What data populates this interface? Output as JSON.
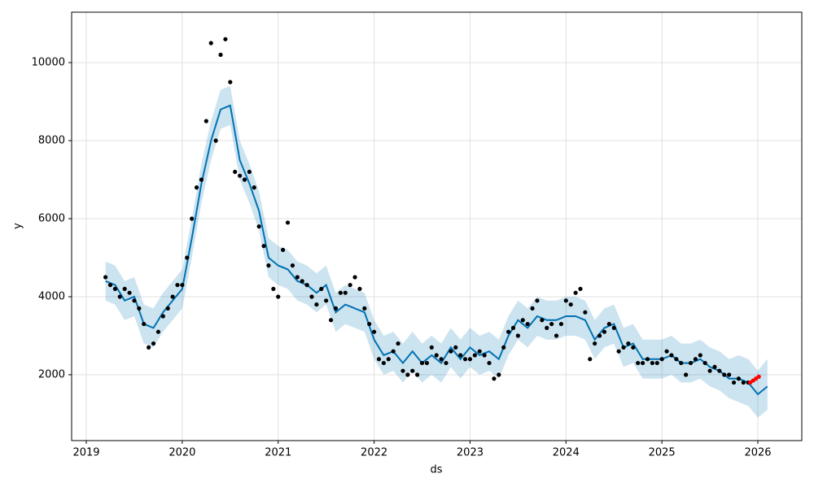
{
  "chart_data": {
    "type": "forecast",
    "x_label": "ds",
    "y_label": "y",
    "xlim": [
      2018.847,
      2026.458
    ],
    "ylim": [
      312,
      11292
    ],
    "xticks": [
      2019,
      2020,
      2021,
      2022,
      2023,
      2024,
      2025,
      2026
    ],
    "yticks": [
      2000,
      4000,
      6000,
      8000,
      10000
    ],
    "grid": true,
    "observed": {
      "color": "#000000",
      "x": [
        2019.2,
        2019.25,
        2019.3,
        2019.35,
        2019.4,
        2019.45,
        2019.5,
        2019.55,
        2019.6,
        2019.65,
        2019.7,
        2019.75,
        2019.8,
        2019.85,
        2019.9,
        2019.95,
        2020.0,
        2020.05,
        2020.1,
        2020.15,
        2020.2,
        2020.25,
        2020.3,
        2020.35,
        2020.4,
        2020.45,
        2020.5,
        2020.55,
        2020.6,
        2020.65,
        2020.7,
        2020.75,
        2020.8,
        2020.85,
        2020.9,
        2020.95,
        2021.0,
        2021.05,
        2021.1,
        2021.15,
        2021.2,
        2021.25,
        2021.3,
        2021.35,
        2021.4,
        2021.45,
        2021.5,
        2021.55,
        2021.6,
        2021.65,
        2021.7,
        2021.75,
        2021.8,
        2021.85,
        2021.9,
        2021.95,
        2022.0,
        2022.05,
        2022.1,
        2022.15,
        2022.2,
        2022.25,
        2022.3,
        2022.35,
        2022.4,
        2022.45,
        2022.5,
        2022.55,
        2022.6,
        2022.65,
        2022.7,
        2022.75,
        2022.8,
        2022.85,
        2022.9,
        2022.95,
        2023.0,
        2023.05,
        2023.1,
        2023.15,
        2023.2,
        2023.25,
        2023.3,
        2023.35,
        2023.4,
        2023.45,
        2023.5,
        2023.55,
        2023.6,
        2023.65,
        2023.7,
        2023.75,
        2023.8,
        2023.85,
        2023.9,
        2023.95,
        2024.0,
        2024.05,
        2024.1,
        2024.15,
        2024.2,
        2024.25,
        2024.3,
        2024.35,
        2024.4,
        2024.45,
        2024.5,
        2024.55,
        2024.6,
        2024.65,
        2024.7,
        2024.75,
        2024.8,
        2024.85,
        2024.9,
        2024.95,
        2025.0,
        2025.05,
        2025.1,
        2025.15,
        2025.2,
        2025.25,
        2025.3,
        2025.35,
        2025.4,
        2025.45,
        2025.5,
        2025.55,
        2025.6,
        2025.65,
        2025.7,
        2025.75,
        2025.8,
        2025.85,
        2025.9
      ],
      "values": [
        4500,
        4300,
        4200,
        4000,
        4200,
        4100,
        3900,
        3700,
        3300,
        2700,
        2800,
        3100,
        3500,
        3700,
        4000,
        4300,
        4300,
        5000,
        6000,
        6800,
        7000,
        8500,
        10500,
        8000,
        10200,
        10600,
        9500,
        7200,
        7100,
        7000,
        7200,
        6800,
        5800,
        5300,
        4800,
        4200,
        4000,
        5200,
        5900,
        4800,
        4500,
        4400,
        4300,
        4000,
        3800,
        4200,
        3900,
        3400,
        3700,
        4100,
        4100,
        4300,
        4500,
        4200,
        3700,
        3300,
        3100,
        2400,
        2300,
        2400,
        2600,
        2800,
        2100,
        2000,
        2100,
        2000,
        2300,
        2300,
        2700,
        2500,
        2400,
        2300,
        2600,
        2700,
        2500,
        2400,
        2400,
        2500,
        2600,
        2500,
        2300,
        1900,
        2000,
        2700,
        3100,
        3200,
        3000,
        3400,
        3300,
        3700,
        3900,
        3400,
        3200,
        3300,
        3000,
        3300,
        3900,
        3800,
        4100,
        4200,
        3600,
        2400,
        2800,
        3000,
        3100,
        3300,
        3200,
        2600,
        2700,
        2800,
        2700,
        2300,
        2300,
        2400,
        2300,
        2300,
        2400,
        2600,
        2500,
        2400,
        2300,
        2000,
        2300,
        2400,
        2500,
        2300,
        2100,
        2200,
        2100,
        2000,
        2000,
        1800,
        1900,
        1800,
        1800
      ]
    },
    "recent": {
      "color": "#ff0000",
      "x": [
        2025.92,
        2025.95,
        2025.98,
        2026.01
      ],
      "values": [
        1800,
        1850,
        1900,
        1950
      ]
    },
    "forecast": {
      "color": "#0072b2",
      "band_color": "#0072b2",
      "x": [
        2019.2,
        2019.3,
        2019.4,
        2019.5,
        2019.6,
        2019.7,
        2019.8,
        2019.9,
        2020.0,
        2020.1,
        2020.2,
        2020.3,
        2020.4,
        2020.5,
        2020.6,
        2020.7,
        2020.8,
        2020.9,
        2021.0,
        2021.1,
        2021.2,
        2021.3,
        2021.4,
        2021.5,
        2021.6,
        2021.7,
        2021.8,
        2021.9,
        2022.0,
        2022.1,
        2022.2,
        2022.3,
        2022.4,
        2022.5,
        2022.6,
        2022.7,
        2022.8,
        2022.9,
        2023.0,
        2023.1,
        2023.2,
        2023.3,
        2023.4,
        2023.5,
        2023.6,
        2023.7,
        2023.8,
        2023.9,
        2024.0,
        2024.1,
        2024.2,
        2024.3,
        2024.4,
        2024.5,
        2024.6,
        2024.7,
        2024.8,
        2024.9,
        2025.0,
        2025.1,
        2025.2,
        2025.3,
        2025.4,
        2025.5,
        2025.6,
        2025.7,
        2025.8,
        2025.9,
        2026.0,
        2026.1
      ],
      "values": [
        4400,
        4300,
        3900,
        4000,
        3300,
        3200,
        3600,
        3900,
        4200,
        5500,
        6900,
        8000,
        8800,
        8900,
        7500,
        6900,
        6200,
        5000,
        4800,
        4700,
        4400,
        4300,
        4100,
        4300,
        3600,
        3800,
        3700,
        3600,
        2900,
        2500,
        2600,
        2300,
        2600,
        2300,
        2500,
        2300,
        2700,
        2400,
        2700,
        2500,
        2600,
        2400,
        3000,
        3400,
        3200,
        3500,
        3400,
        3400,
        3500,
        3500,
        3400,
        2900,
        3200,
        3300,
        2700,
        2800,
        2400,
        2400,
        2400,
        2500,
        2300,
        2300,
        2400,
        2200,
        2100,
        1900,
        1900,
        1800,
        1500,
        1700
      ],
      "lower": [
        3900,
        3800,
        3400,
        3500,
        2800,
        2700,
        3100,
        3400,
        3700,
        5000,
        6400,
        7500,
        8300,
        8400,
        7000,
        6400,
        5700,
        4500,
        4300,
        4200,
        3900,
        3800,
        3600,
        3800,
        3100,
        3300,
        3200,
        3100,
        2400,
        2000,
        2100,
        1800,
        2100,
        1800,
        2000,
        1800,
        2200,
        1900,
        2200,
        2000,
        2100,
        1900,
        2500,
        2900,
        2700,
        3000,
        2900,
        2900,
        3000,
        3000,
        2900,
        2400,
        2700,
        2800,
        2200,
        2300,
        1900,
        1900,
        1900,
        2000,
        1800,
        1800,
        1900,
        1700,
        1600,
        1400,
        1300,
        1200,
        900,
        1100
      ],
      "upper": [
        4900,
        4800,
        4400,
        4500,
        3800,
        3700,
        4100,
        4400,
        4700,
        6000,
        7400,
        8500,
        9300,
        9400,
        8000,
        7400,
        6700,
        5500,
        5300,
        5200,
        4900,
        4800,
        4600,
        4800,
        4100,
        4300,
        4200,
        4100,
        3400,
        3000,
        3100,
        2800,
        3100,
        2800,
        3000,
        2800,
        3200,
        2900,
        3200,
        3000,
        3100,
        2900,
        3500,
        3900,
        3700,
        4000,
        3900,
        3900,
        4000,
        4000,
        3900,
        3400,
        3700,
        3800,
        3200,
        3300,
        2900,
        2900,
        2900,
        3000,
        2800,
        2800,
        2900,
        2700,
        2600,
        2400,
        2500,
        2400,
        2100,
        2400
      ]
    }
  }
}
